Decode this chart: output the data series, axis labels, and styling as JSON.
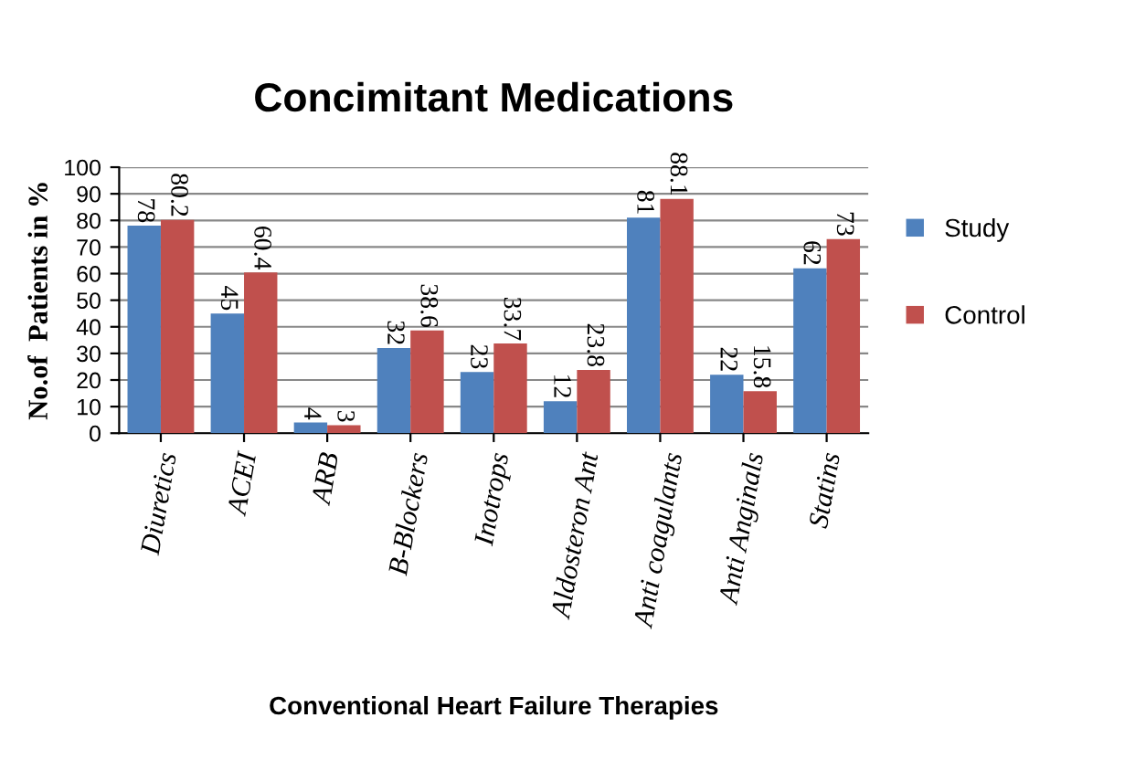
{
  "chart_data": {
    "type": "bar",
    "title": "Concimitant Medications",
    "xlabel": "Conventional Heart Failure Therapies",
    "ylabel": "No.of  Patients in %",
    "categories": [
      "Diuretics",
      "ACEI",
      "ARB",
      "B-Blockers",
      "Inotrops",
      "Aldosteron Ant",
      "Anti coagulants",
      "Anti Anginals",
      "Statins"
    ],
    "series": [
      {
        "name": "Study",
        "color": "#4f81bd",
        "values": [
          78,
          45,
          4,
          32,
          23,
          12,
          81,
          22,
          62
        ]
      },
      {
        "name": "Control",
        "color": "#c0504d",
        "values": [
          80.2,
          60.4,
          3,
          38.6,
          33.7,
          23.8,
          88.1,
          15.8,
          73
        ]
      }
    ],
    "ylim": [
      0,
      100
    ],
    "yticks": [
      0,
      10,
      20,
      30,
      40,
      50,
      60,
      70,
      80,
      90,
      100
    ],
    "grid": "y",
    "legend": "right",
    "data_labels": true
  }
}
